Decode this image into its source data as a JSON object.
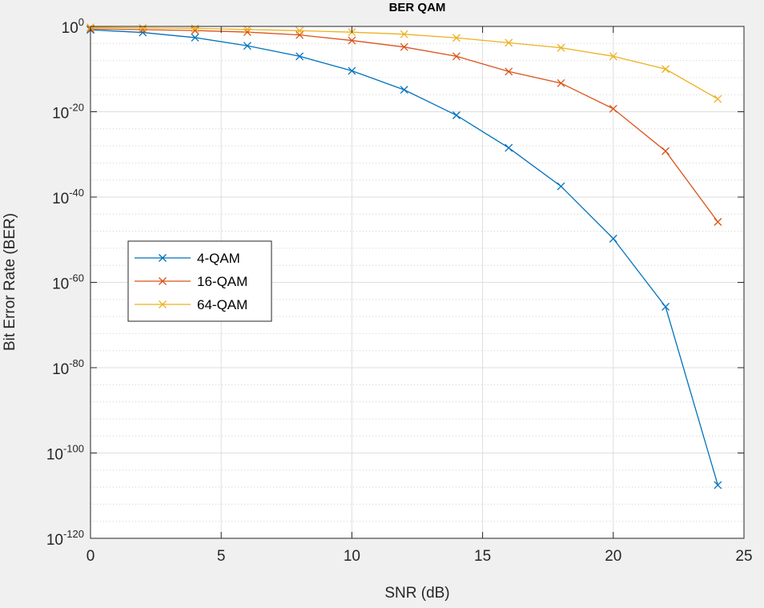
{
  "chart_data": {
    "type": "line",
    "title": "BER QAM",
    "xlabel": "SNR (dB)",
    "ylabel": "Bit Error Rate (BER)",
    "x_scale": "linear",
    "y_scale": "log",
    "xlim": [
      0,
      25
    ],
    "ylim": [
      1e-120,
      1
    ],
    "xticks": [
      0,
      5,
      10,
      15,
      20,
      25
    ],
    "yticks": [
      {
        "base": "10",
        "exp": "0"
      },
      {
        "base": "10",
        "exp": "-20"
      },
      {
        "base": "10",
        "exp": "-40"
      },
      {
        "base": "10",
        "exp": "-60"
      },
      {
        "base": "10",
        "exp": "-80"
      },
      {
        "base": "10",
        "exp": "-100"
      },
      {
        "base": "10",
        "exp": "-120"
      }
    ],
    "grid": true,
    "minor_grid": true,
    "legend_position": "middle-left",
    "marker": "x",
    "x": [
      0,
      2,
      4,
      6,
      8,
      10,
      12,
      14,
      16,
      18,
      20,
      22,
      24
    ],
    "series": [
      {
        "name": "4-QAM",
        "color": "#0072BD",
        "values": [
          0.16,
          0.038,
          0.0024,
          2.9e-05,
          1e-07,
          3.9e-11,
          1.4e-15,
          1.5e-21,
          3.4e-29,
          3.3e-38,
          1.8e-50,
          1.9e-66,
          3e-108
        ]
      },
      {
        "name": "16-QAM",
        "color": "#D95319",
        "values": [
          0.27,
          0.18,
          0.11,
          0.047,
          0.01,
          0.0005,
          1.5e-05,
          1e-07,
          2.7e-11,
          5e-14,
          5e-20,
          6e-30,
          1.5e-46
        ]
      },
      {
        "name": "64-QAM",
        "color": "#EDB120",
        "values": [
          0.6,
          0.45,
          0.35,
          0.2,
          0.1,
          0.045,
          0.015,
          0.0021,
          0.00015,
          1e-05,
          1e-07,
          1e-10,
          1e-17
        ]
      }
    ]
  }
}
